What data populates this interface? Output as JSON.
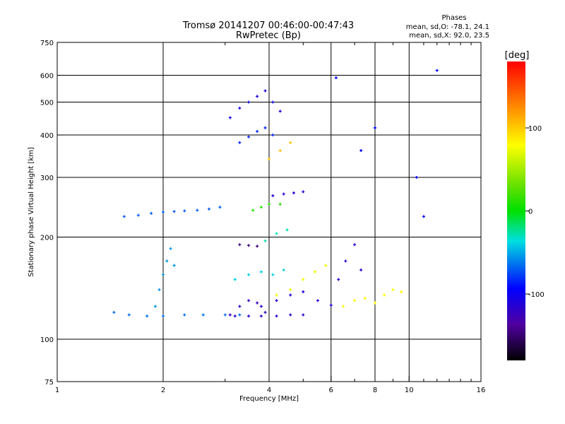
{
  "chart_data": {
    "type": "scatter",
    "title": "Tromsø 20141207 00:46:00-00:47:43",
    "subtitle": "RwPretec (Bp)",
    "xlabel": "Frequency [MHz]",
    "ylabel": "Stationary phase Virtual Height [km]",
    "xscale": "log",
    "yscale": "log",
    "xlim": [
      1,
      16
    ],
    "ylim": [
      75,
      750
    ],
    "xticks": [
      1,
      2,
      4,
      6,
      8,
      10,
      16
    ],
    "xtick_labels": [
      "1",
      "2",
      "4",
      "6",
      "8",
      "10",
      "16"
    ],
    "yticks": [
      75,
      100,
      200,
      300,
      400,
      500,
      600,
      750
    ],
    "ytick_labels": [
      "75",
      "100",
      "200",
      "300",
      "400",
      "500",
      "600",
      "750"
    ],
    "grid": true,
    "legend": {
      "title": "Phases",
      "lines": [
        "mean, sd,O: -78.1, 24.1",
        "mean, sd,X:  92.0, 23.5"
      ],
      "placement": "top-right"
    },
    "colorbar": {
      "label": "[deg]",
      "range": [
        -180,
        180
      ],
      "ticks": [
        100,
        0,
        -100
      ],
      "tick_labels": [
        "100",
        "0",
        "-100"
      ]
    },
    "series": [
      {
        "x": [
          1.55,
          1.7,
          1.85,
          2.0,
          2.15,
          2.3,
          2.5,
          2.7,
          2.9
        ],
        "y": [
          230,
          232,
          235,
          237,
          238,
          239,
          240,
          242,
          245
        ],
        "phase": -75
      },
      {
        "x": [
          1.45,
          1.6,
          1.8,
          2.0,
          2.3,
          2.6,
          3.0,
          3.3
        ],
        "y": [
          120,
          118,
          117,
          117,
          118,
          118,
          118,
          118
        ],
        "phase": -70
      },
      {
        "x": [
          3.2,
          3.5,
          3.8,
          4.2,
          4.6,
          5.0
        ],
        "y": [
          117,
          117,
          117,
          117,
          118,
          118
        ],
        "phase": -120
      },
      {
        "x": [
          1.9,
          1.95,
          2.0,
          2.05,
          2.1,
          2.15
        ],
        "y": [
          125,
          140,
          155,
          170,
          185,
          165
        ],
        "phase": -60
      },
      {
        "x": [
          3.1,
          3.3,
          3.5,
          3.7,
          3.9
        ],
        "y": [
          118,
          125,
          130,
          128,
          120
        ],
        "phase": -125
      },
      {
        "x": [
          3.8,
          4.2,
          4.6,
          5.0,
          5.5,
          6.0
        ],
        "y": [
          125,
          130,
          135,
          138,
          130,
          126
        ],
        "phase": -115
      },
      {
        "x": [
          4.2,
          4.6,
          5.0,
          5.4,
          5.8
        ],
        "y": [
          135,
          140,
          150,
          158,
          165
        ],
        "phase": 95
      },
      {
        "x": [
          3.2,
          3.5,
          3.8,
          4.1,
          4.4
        ],
        "y": [
          150,
          155,
          158,
          155,
          160
        ],
        "phase": -45
      },
      {
        "x": [
          3.3,
          3.5,
          3.7
        ],
        "y": [
          190,
          189,
          188
        ],
        "phase": -150
      },
      {
        "x": [
          3.3,
          3.5,
          3.7,
          3.9,
          4.1
        ],
        "y": [
          380,
          395,
          410,
          420,
          400
        ],
        "phase": -90
      },
      {
        "x": [
          3.1,
          3.3,
          3.5,
          3.7,
          3.9,
          4.1,
          4.3
        ],
        "y": [
          450,
          480,
          500,
          520,
          540,
          500,
          470
        ],
        "phase": -110
      },
      {
        "x": [
          4.1,
          4.4,
          4.7,
          5.0
        ],
        "y": [
          265,
          268,
          270,
          272
        ],
        "phase": -115
      },
      {
        "x": [
          3.9,
          4.2,
          4.5
        ],
        "y": [
          195,
          205,
          210
        ],
        "phase": -30
      },
      {
        "x": [
          6.5,
          7.0,
          7.5,
          8.0,
          8.5,
          9.0,
          9.5
        ],
        "y": [
          125,
          130,
          132,
          128,
          135,
          140,
          138
        ],
        "phase": 100
      },
      {
        "x": [
          6.3,
          6.6,
          7.0,
          7.3
        ],
        "y": [
          150,
          170,
          190,
          160
        ],
        "phase": -120
      },
      {
        "x": [
          3.6,
          3.8,
          4.0,
          4.3
        ],
        "y": [
          240,
          245,
          250,
          250
        ],
        "phase": 15
      },
      {
        "x": [
          4.0,
          4.3,
          4.6
        ],
        "y": [
          340,
          360,
          380
        ],
        "phase": 120
      },
      {
        "x": [
          6.2,
          7.3,
          8.0,
          10.5,
          11.0,
          12.0
        ],
        "y": [
          590,
          360,
          420,
          300,
          230,
          620
        ],
        "phase": -100
      }
    ]
  }
}
